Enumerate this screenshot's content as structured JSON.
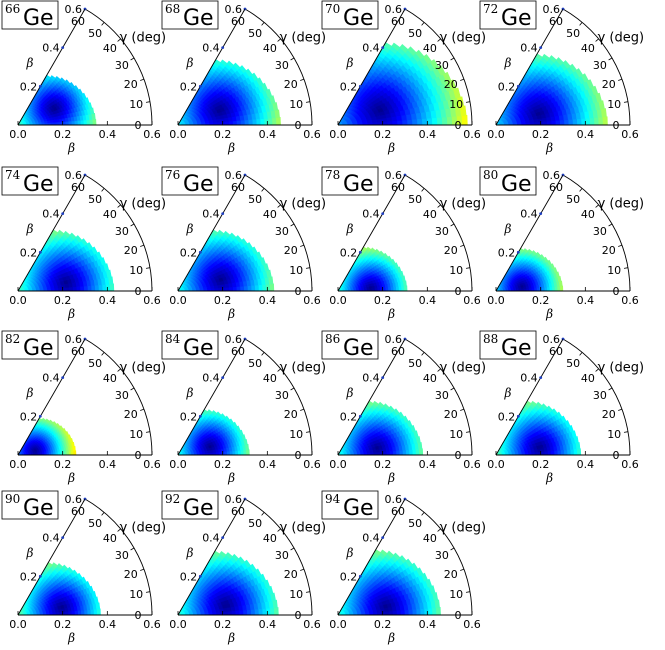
{
  "element": "Ge",
  "colors": {
    "scale": [
      "#00008f",
      "#0000ff",
      "#0080ff",
      "#00ffff",
      "#80ff80",
      "#ffff00",
      "#ff8000",
      "#ff0000",
      "#800000"
    ]
  },
  "axes": {
    "x_label": "β",
    "beta_label": "β",
    "gamma_label": "γ (deg)",
    "x_ticks": [
      "0.0",
      "0.2",
      "0.4",
      "0.6"
    ],
    "beta_ticks": [
      "0.2",
      "0.4",
      "0.6"
    ],
    "gamma_ticks": [
      "0",
      "10",
      "20",
      "30",
      "40",
      "50",
      "60"
    ]
  },
  "chart_data": {
    "type": "heatmap",
    "coordinates": "polar beta-gamma plane",
    "beta_range": [
      0,
      0.6
    ],
    "gamma_range": [
      0,
      60
    ],
    "panels": [
      {
        "mass": "66",
        "min_beta": 0.18,
        "min_gamma": 25,
        "max_beta": 0.35
      },
      {
        "mass": "68",
        "min_beta": 0.2,
        "min_gamma": 20,
        "max_beta": 0.46
      },
      {
        "mass": "70",
        "min_beta": 0.2,
        "min_gamma": 20,
        "max_beta": 0.58
      },
      {
        "mass": "72",
        "min_beta": 0.2,
        "min_gamma": 15,
        "max_beta": 0.5
      },
      {
        "mass": "74",
        "min_beta": 0.22,
        "min_gamma": 10,
        "max_beta": 0.43
      },
      {
        "mass": "76",
        "min_beta": 0.2,
        "min_gamma": 15,
        "max_beta": 0.43
      },
      {
        "mass": "78",
        "min_beta": 0.15,
        "min_gamma": 5,
        "max_beta": 0.31
      },
      {
        "mass": "80",
        "min_beta": 0.12,
        "min_gamma": 10,
        "max_beta": 0.3
      },
      {
        "mass": "82",
        "min_beta": 0.08,
        "min_gamma": 15,
        "max_beta": 0.26
      },
      {
        "mass": "84",
        "min_beta": 0.15,
        "min_gamma": 15,
        "max_beta": 0.32
      },
      {
        "mass": "86",
        "min_beta": 0.18,
        "min_gamma": 10,
        "max_beta": 0.38
      },
      {
        "mass": "88",
        "min_beta": 0.2,
        "min_gamma": 10,
        "max_beta": 0.38
      },
      {
        "mass": "90",
        "min_beta": 0.2,
        "min_gamma": 10,
        "max_beta": 0.37
      },
      {
        "mass": "92",
        "min_beta": 0.22,
        "min_gamma": 12,
        "max_beta": 0.45
      },
      {
        "mass": "94",
        "min_beta": 0.22,
        "min_gamma": 10,
        "max_beta": 0.46
      }
    ]
  }
}
